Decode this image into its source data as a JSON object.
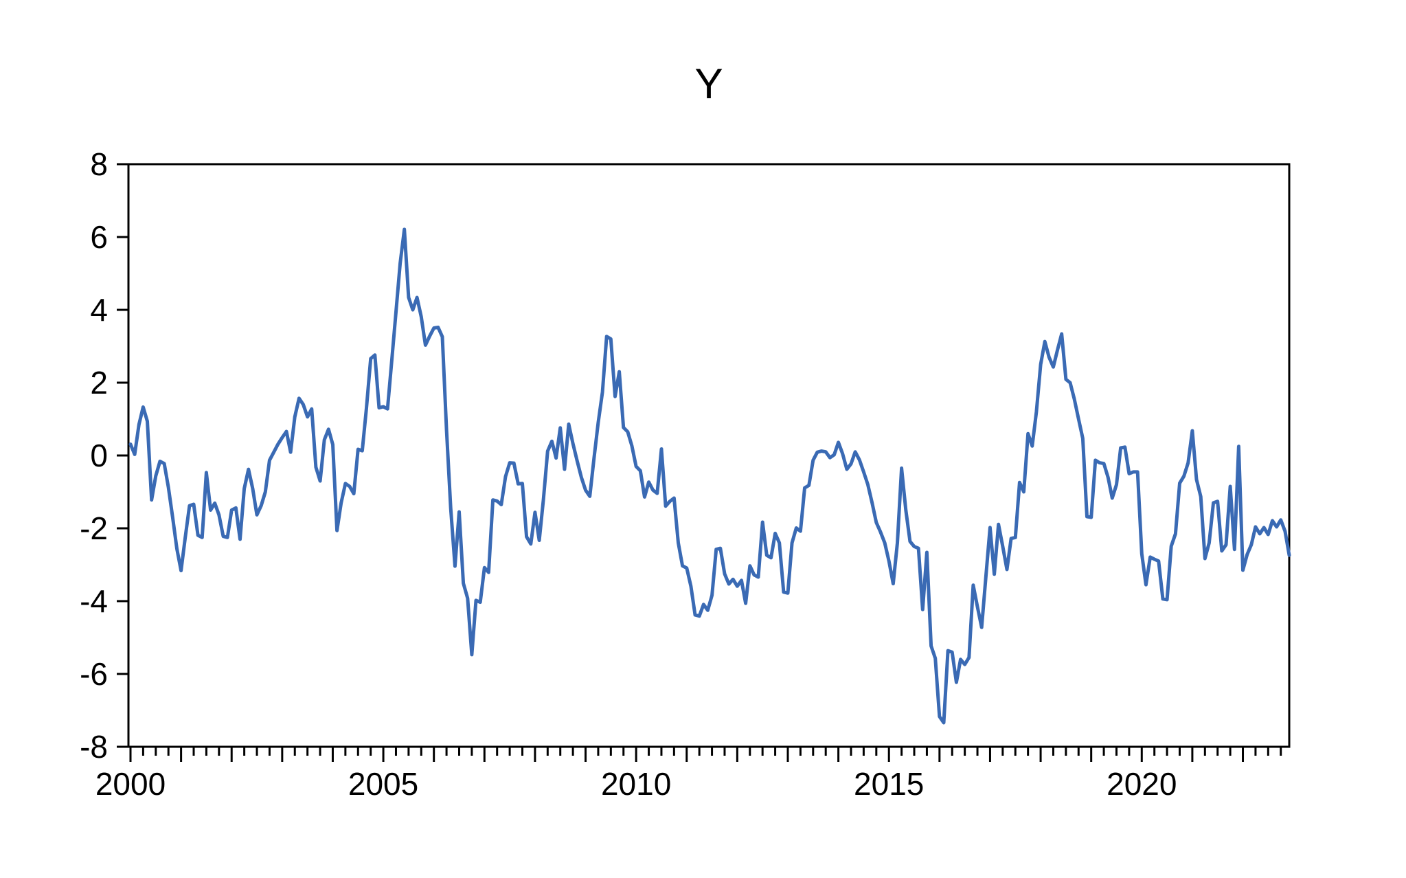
{
  "chart_data": {
    "type": "line",
    "title": "Y",
    "xlabel": "",
    "ylabel": "",
    "frequency": "monthly",
    "x_start_year": 2000,
    "x_end_year": 2022,
    "ylim": [
      -8,
      8
    ],
    "grid": "off",
    "legend": "none",
    "line_color": "#3A6AB4",
    "axis_color": "#000000",
    "y_ticks": [
      8,
      6,
      4,
      2,
      0,
      -2,
      -4,
      -6,
      -8
    ],
    "x_tick_labels": [
      "2000",
      "2005",
      "2010",
      "2015",
      "2020"
    ],
    "x_tick_years": [
      2000,
      2005,
      2010,
      2015,
      2020
    ],
    "series": [
      {
        "name": "Y",
        "values": [
          0.31,
          0.03,
          0.85,
          1.33,
          0.94,
          -1.22,
          -0.56,
          -0.16,
          -0.22,
          -0.88,
          -1.69,
          -2.56,
          -3.16,
          -2.25,
          -1.38,
          -1.34,
          -2.19,
          -2.25,
          -0.47,
          -1.5,
          -1.31,
          -1.63,
          -2.22,
          -2.25,
          -1.5,
          -1.44,
          -2.3,
          -0.91,
          -0.38,
          -0.91,
          -1.63,
          -1.38,
          -1.0,
          -0.13,
          0.09,
          0.31,
          0.49,
          0.66,
          0.09,
          1.06,
          1.57,
          1.4,
          1.06,
          1.28,
          -0.32,
          -0.7,
          0.43,
          0.72,
          0.3,
          -2.06,
          -1.3,
          -0.77,
          -0.85,
          -1.05,
          0.17,
          0.13,
          1.3,
          2.66,
          2.76,
          1.31,
          1.34,
          1.28,
          2.59,
          3.94,
          5.28,
          6.21,
          4.34,
          4.0,
          4.34,
          3.81,
          3.03,
          3.28,
          3.5,
          3.52,
          3.26,
          0.7,
          -1.45,
          -3.04,
          -1.55,
          -3.51,
          -3.92,
          -5.47,
          -3.98,
          -4.03,
          -3.08,
          -3.21,
          -1.22,
          -1.25,
          -1.35,
          -0.58,
          -0.2,
          -0.21,
          -0.78,
          -0.77,
          -2.23,
          -2.43,
          -1.56,
          -2.33,
          -1.2,
          0.12,
          0.39,
          -0.07,
          0.76,
          -0.38,
          0.86,
          0.33,
          -0.15,
          -0.6,
          -0.95,
          -1.12,
          -0.08,
          0.9,
          1.74,
          3.27,
          3.2,
          1.62,
          2.3,
          0.77,
          0.65,
          0.26,
          -0.3,
          -0.42,
          -1.14,
          -0.73,
          -0.95,
          -1.04,
          0.18,
          -1.39,
          -1.26,
          -1.17,
          -2.4,
          -3.03,
          -3.09,
          -3.59,
          -4.38,
          -4.41,
          -4.09,
          -4.25,
          -3.84,
          -2.58,
          -2.55,
          -3.25,
          -3.53,
          -3.4,
          -3.59,
          -3.43,
          -4.06,
          -3.03,
          -3.28,
          -3.34,
          -1.83,
          -2.74,
          -2.81,
          -2.14,
          -2.4,
          -3.75,
          -3.78,
          -2.4,
          -1.99,
          -2.08,
          -0.89,
          -0.82,
          -0.13,
          0.09,
          0.12,
          0.1,
          -0.06,
          0.02,
          0.36,
          0.05,
          -0.38,
          -0.23,
          0.1,
          -0.12,
          -0.45,
          -0.8,
          -1.3,
          -1.84,
          -2.1,
          -2.4,
          -2.9,
          -3.52,
          -2.4,
          -0.35,
          -1.5,
          -2.36,
          -2.5,
          -2.55,
          -4.23,
          -2.66,
          -5.23,
          -5.57,
          -7.17,
          -7.34,
          -5.36,
          -5.4,
          -6.23,
          -5.6,
          -5.74,
          -5.55,
          -3.56,
          -4.15,
          -4.72,
          -3.34,
          -1.98,
          -3.26,
          -1.89,
          -2.5,
          -3.13,
          -2.28,
          -2.25,
          -0.74,
          -1.0,
          0.6,
          0.26,
          1.2,
          2.5,
          3.13,
          2.7,
          2.43,
          2.9,
          3.34,
          2.09,
          2.0,
          1.55,
          1.0,
          0.47,
          -1.68,
          -1.7,
          -0.13,
          -0.2,
          -0.22,
          -0.6,
          -1.17,
          -0.8,
          0.21,
          0.23,
          -0.5,
          -0.45,
          -0.45,
          -2.7,
          -3.55,
          -2.79,
          -2.85,
          -2.9,
          -3.94,
          -3.96,
          -2.49,
          -2.15,
          -0.76,
          -0.57,
          -0.2,
          0.68,
          -0.66,
          -1.13,
          -2.83,
          -2.4,
          -1.3,
          -1.26,
          -2.62,
          -2.45,
          -0.85,
          -2.58,
          0.25,
          -3.15,
          -2.72,
          -2.45,
          -1.96,
          -2.15,
          -1.98,
          -2.17,
          -1.79,
          -1.96,
          -1.77,
          -2.08,
          -2.74
        ]
      }
    ]
  }
}
